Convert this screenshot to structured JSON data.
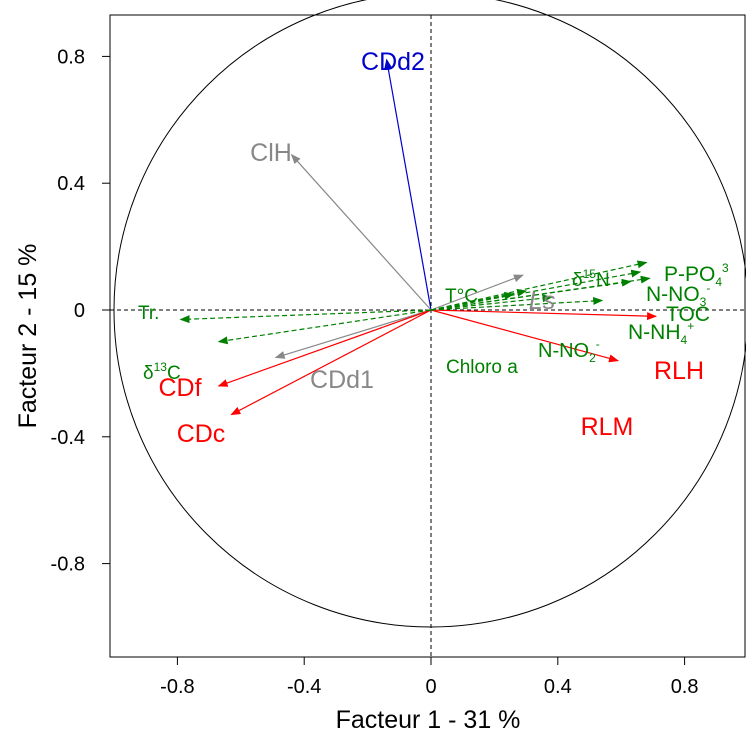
{
  "chart_data": {
    "type": "scatter",
    "subtype": "correlation-circle",
    "xlabel": "Facteur 1  -  31 %",
    "ylabel": "Facteur 2  -  15 %",
    "xlim": [
      -1.02,
      1.0
    ],
    "ylim": [
      -1.0,
      1.02
    ],
    "xticks": [
      "-0.8",
      "-0.4",
      "0",
      "0.4",
      "0.8"
    ],
    "yticks": [
      "-0.8",
      "-0.4",
      "0",
      "0.4",
      "0.8"
    ],
    "xtick_values": [
      -0.8,
      -0.4,
      0,
      0.4,
      0.8
    ],
    "ytick_values": [
      -0.8,
      -0.4,
      0,
      0.4,
      0.8
    ],
    "unit_circle": true,
    "reference_lines": "dashed lines at x=0 and y=0",
    "grid": false,
    "colors": {
      "red": "#ff0000",
      "blue": "#0000cc",
      "gray": "#888888",
      "green": "#008000"
    },
    "vectors": [
      {
        "name": "CDd2",
        "x": -0.14,
        "y": 0.79,
        "color": "blue",
        "style": "solid"
      },
      {
        "name": "CIH",
        "x": -0.44,
        "y": 0.49,
        "color": "gray",
        "style": "solid"
      },
      {
        "name": "CDd1",
        "x": -0.49,
        "y": -0.15,
        "color": "gray",
        "style": "solid"
      },
      {
        "name": "CDf",
        "x": -0.67,
        "y": -0.24,
        "color": "red",
        "style": "solid"
      },
      {
        "name": "CDc",
        "x": -0.63,
        "y": -0.33,
        "color": "red",
        "style": "solid"
      },
      {
        "name": "RLH",
        "x": 0.71,
        "y": -0.02,
        "color": "red",
        "style": "solid"
      },
      {
        "name": "RLM",
        "x": 0.59,
        "y": -0.16,
        "color": "red",
        "style": "solid"
      },
      {
        "name": "Ls",
        "x": 0.29,
        "y": 0.11,
        "color": "gray",
        "style": "solid"
      },
      {
        "name": "Tr.",
        "x": -0.79,
        "y": -0.03,
        "color": "green",
        "style": "dashed"
      },
      {
        "name": "δ13C",
        "x": -0.67,
        "y": -0.1,
        "color": "green",
        "style": "dashed"
      },
      {
        "name": "T°C",
        "x": 0.26,
        "y": 0.05,
        "color": "green",
        "style": "dashed"
      },
      {
        "name": "δ15N",
        "x": 0.68,
        "y": 0.15,
        "color": "green",
        "style": "dashed"
      },
      {
        "name": "P-PO43-",
        "x": 0.66,
        "y": 0.12,
        "color": "green",
        "style": "dashed"
      },
      {
        "name": "N-NO3-",
        "x": 0.69,
        "y": 0.1,
        "color": "green",
        "style": "dashed"
      },
      {
        "name": "TOC",
        "x": 0.63,
        "y": 0.09,
        "color": "green",
        "style": "dashed"
      },
      {
        "name": "N-NH4+",
        "x": 0.54,
        "y": 0.03,
        "color": "green",
        "style": "dashed"
      },
      {
        "name": "N-NO2-",
        "x": 0.38,
        "y": 0.04,
        "color": "green",
        "style": "dashed"
      },
      {
        "name": "Chloro a",
        "x": 0.3,
        "y": 0.06,
        "color": "green",
        "style": "dashed"
      }
    ]
  },
  "labels": {
    "CDd2": "CDd2",
    "CIH": "ClH",
    "CDd1": "CDd1",
    "CDf": "CDf",
    "CDc": "CDc",
    "RLH": "RLH",
    "RLM": "RLM",
    "Ls": "Ls",
    "Tr": "Tr.",
    "d13C_delta": "δ",
    "d13C_sup": "13",
    "d13C_base": "C",
    "TC": "T°C",
    "d15N_delta": "δ",
    "d15N_sup": "15",
    "d15N_base": "N",
    "PPO4_base": "P-PO",
    "PPO4_sub": "4",
    "PPO4_sup": "3",
    "NNO3_base": "N-NO",
    "NNO3_sub": "3",
    "NNO3_sup": "-",
    "TOC": "TOC",
    "NNH4_base": "N-NH",
    "NNH4_sub": "4",
    "NNH4_sup": "+",
    "NNO2_base": "N-NO",
    "NNO2_sub": "2",
    "NNO2_sup": "-",
    "Chloro": "Chloro a"
  }
}
